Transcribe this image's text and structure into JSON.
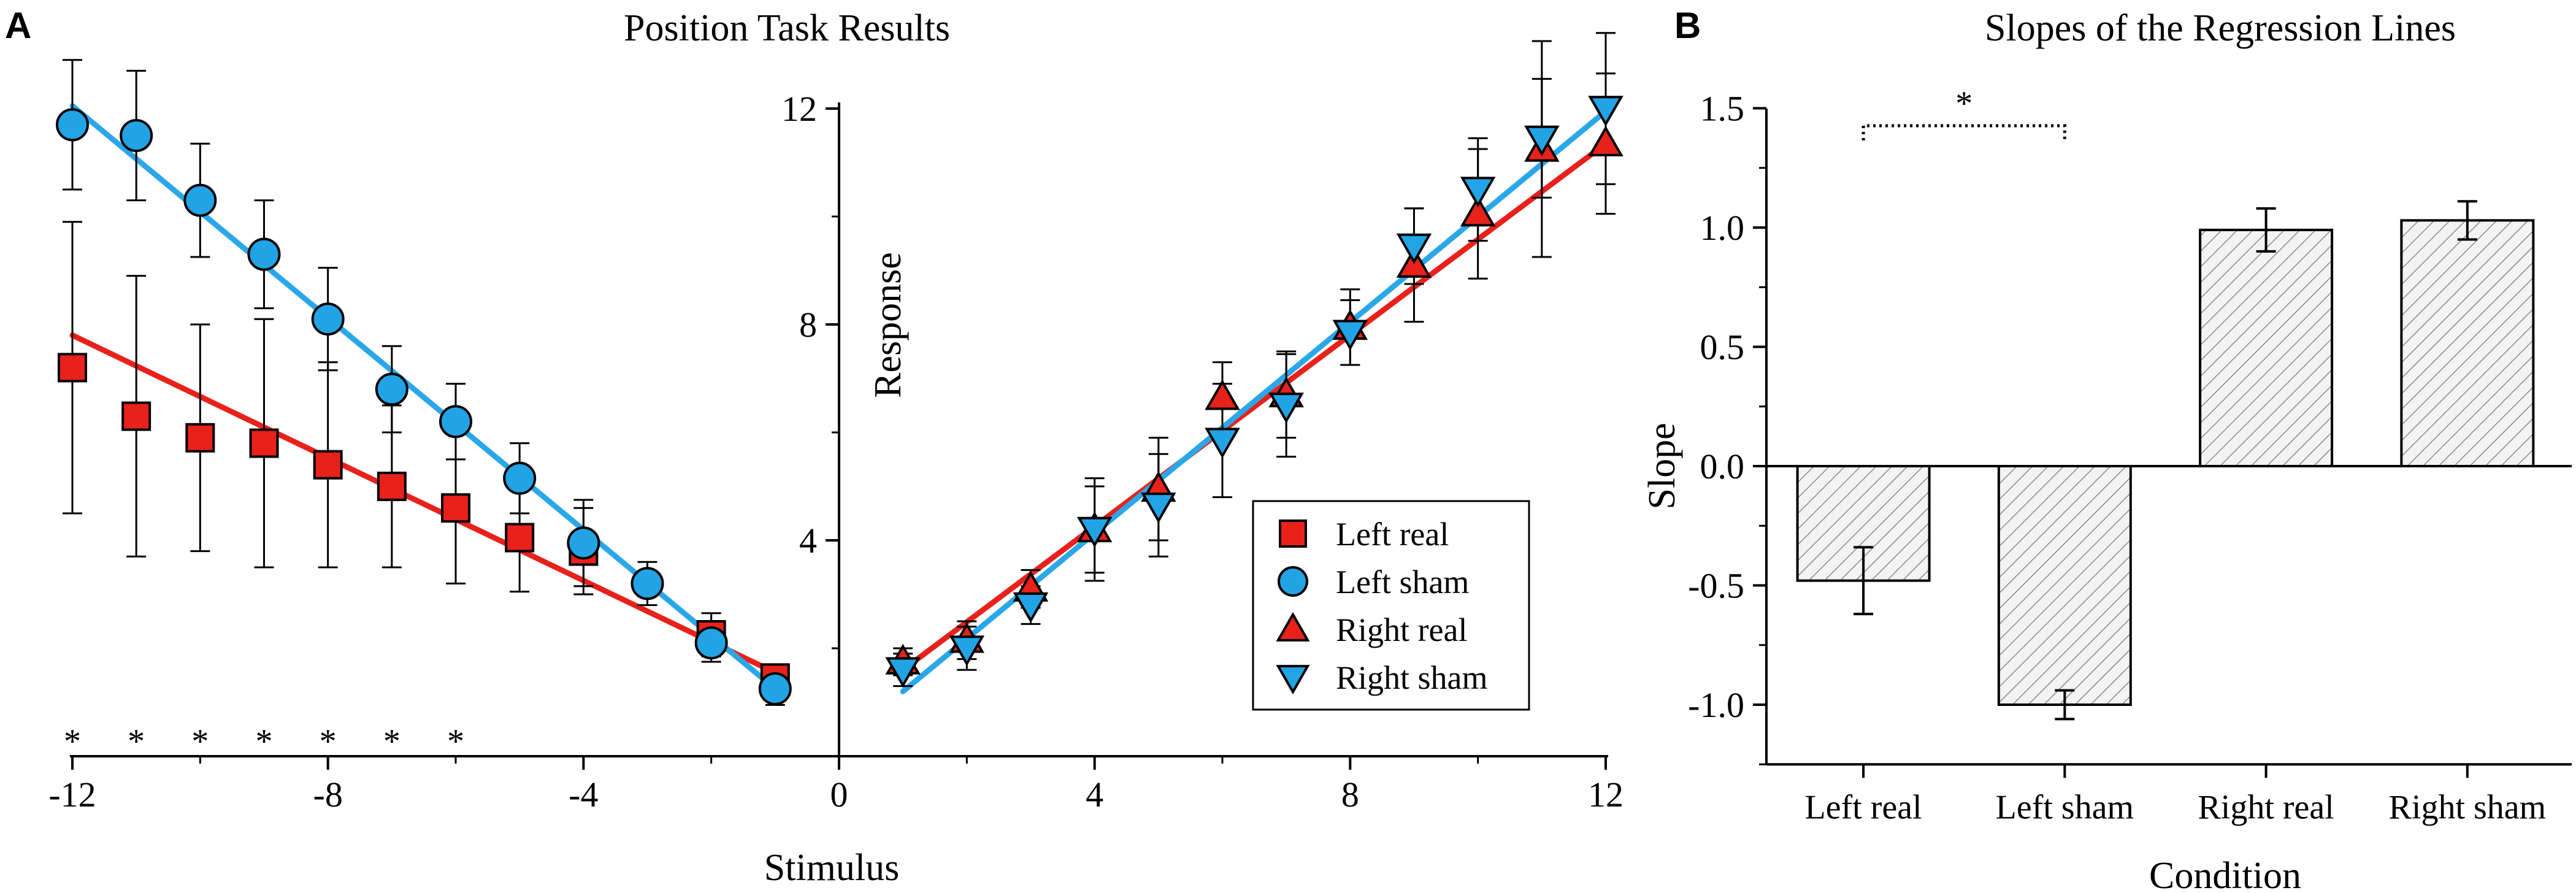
{
  "colors": {
    "left_real": "#e8211b",
    "left_sham": "#22a3e6",
    "right_real": "#e8211b",
    "right_sham": "#22a3e6",
    "line_real": "#e8211b",
    "line_sham": "#2aa7e8",
    "bar_fill": "#f3f3f3",
    "hatch": "#8a8a8a"
  },
  "chart_data": [
    {
      "panel": "A",
      "type": "scatter",
      "title": "Position Task Results",
      "xlabel": "Stimulus",
      "ylabel": "Response",
      "xlim": [
        -12,
        12
      ],
      "ylim": [
        0,
        12
      ],
      "xticks": [
        -12,
        -8,
        -4,
        0,
        4,
        8,
        12
      ],
      "yticks": [
        4,
        8,
        12
      ],
      "grid": false,
      "legend_position": "bottom-right",
      "significance_marker": "*",
      "significant_stimuli": [
        -12,
        -11,
        -10,
        -9,
        -8,
        -7,
        -6
      ],
      "series": [
        {
          "name": "Left real",
          "marker": "square",
          "x": [
            -12,
            -11,
            -10,
            -9,
            -8,
            -7,
            -6,
            -5,
            -4,
            -2,
            -1
          ],
          "y": [
            7.2,
            6.3,
            5.9,
            5.8,
            5.4,
            5.0,
            4.6,
            4.05,
            3.8,
            2.25,
            1.45
          ],
          "err": [
            2.7,
            2.6,
            2.1,
            2.3,
            1.9,
            1.5,
            1.4,
            1.0,
            0.8,
            0.4,
            0.2
          ],
          "fit": {
            "x": [
              -12,
              -1
            ],
            "y": [
              7.8,
              1.55
            ]
          }
        },
        {
          "name": "Left sham",
          "marker": "circle",
          "x": [
            -12,
            -11,
            -10,
            -9,
            -8,
            -7,
            -6,
            -5,
            -4,
            -3,
            -2,
            -1
          ],
          "y": [
            11.7,
            11.5,
            10.3,
            9.3,
            8.1,
            6.8,
            6.2,
            5.15,
            3.95,
            3.2,
            2.1,
            1.25
          ],
          "err": [
            1.2,
            1.2,
            1.05,
            1.0,
            0.95,
            0.8,
            0.7,
            0.65,
            0.8,
            0.4,
            0.35,
            0.3
          ],
          "fit": {
            "x": [
              -12,
              -1
            ],
            "y": [
              12.05,
              1.25
            ]
          }
        },
        {
          "name": "Right real",
          "marker": "triangle-up",
          "x": [
            1,
            2,
            3,
            4,
            5,
            6,
            7,
            8,
            9,
            10,
            11,
            12
          ],
          "y": [
            1.75,
            2.15,
            3.1,
            4.2,
            4.95,
            6.65,
            6.7,
            7.95,
            9.1,
            10.05,
            11.25,
            11.35
          ],
          "err": [
            0.25,
            0.35,
            0.35,
            0.8,
            0.95,
            0.65,
            0.8,
            0.7,
            1.05,
            1.2,
            2.0,
            1.3
          ],
          "fit": {
            "x": [
              1,
              12
            ],
            "y": [
              1.6,
              11.35
            ]
          }
        },
        {
          "name": "Right sham",
          "marker": "triangle-down",
          "x": [
            1,
            2,
            3,
            4,
            5,
            6,
            7,
            8,
            9,
            10,
            11,
            12
          ],
          "y": [
            1.6,
            2.0,
            2.8,
            4.2,
            4.65,
            5.85,
            6.5,
            7.85,
            9.45,
            10.5,
            11.45,
            12.0
          ],
          "err": [
            0.3,
            0.4,
            0.35,
            0.95,
            0.95,
            1.05,
            0.95,
            0.6,
            0.7,
            0.95,
            1.1,
            1.4
          ],
          "fit": {
            "x": [
              1,
              12
            ],
            "y": [
              1.2,
              11.95
            ]
          }
        }
      ]
    },
    {
      "panel": "B",
      "type": "bar",
      "title": "Slopes of the Regression Lines",
      "xlabel": "Condition",
      "ylabel": "Slope",
      "ylim": [
        -1.25,
        1.5
      ],
      "yticks": [
        -1.0,
        -0.5,
        0.0,
        0.5,
        1.0,
        1.5
      ],
      "ytick_labels": [
        "-1.0",
        "-0.5",
        "0.0",
        "0.5",
        "1.0",
        "1.5"
      ],
      "grid": false,
      "categories": [
        "Left real",
        "Left sham",
        "Right real",
        "Right sham"
      ],
      "values": [
        -0.48,
        -1.0,
        0.99,
        1.03
      ],
      "errors": [
        0.14,
        0.06,
        0.09,
        0.08
      ],
      "significance": {
        "between": [
          "Left real",
          "Left sham"
        ],
        "marker": "*"
      }
    }
  ]
}
